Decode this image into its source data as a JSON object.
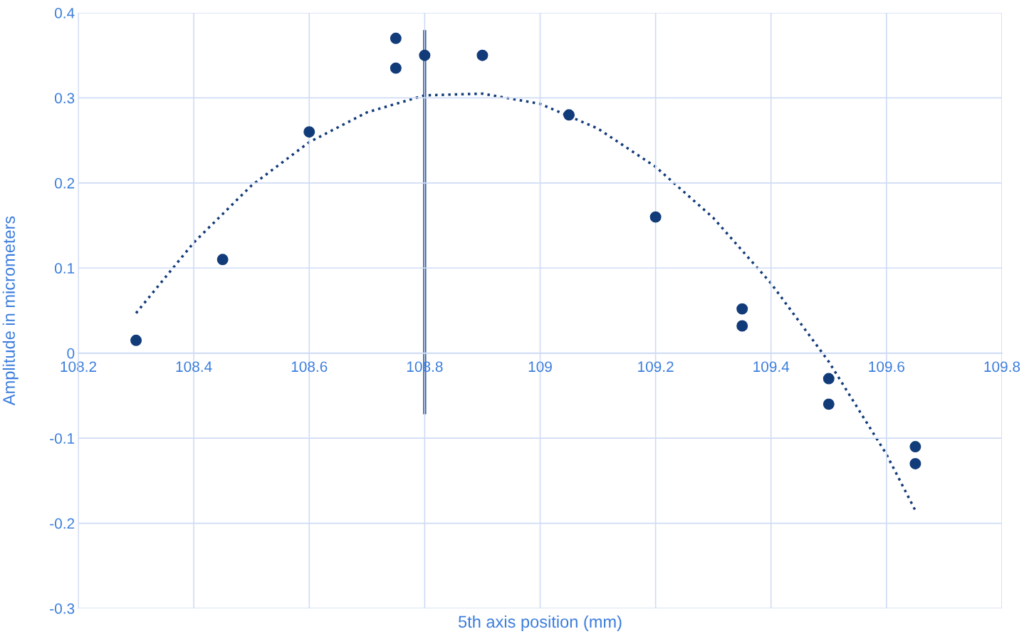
{
  "chart_data": {
    "type": "scatter",
    "xlabel": "5th axis position (mm)",
    "ylabel": "Amplitude in micrometers",
    "xlim": [
      108.2,
      109.8
    ],
    "xticks": [
      108.2,
      108.4,
      108.6,
      108.8,
      109,
      109.2,
      109.4,
      109.6,
      109.8
    ],
    "ylim": [
      -0.3,
      0.4
    ],
    "yticks": [
      -0.3,
      -0.2,
      -0.1,
      0,
      0.1,
      0.2,
      0.3,
      0.4
    ],
    "grid": true,
    "legend": false,
    "marker": "circle",
    "series": [
      {
        "color": "#123b7a",
        "x": [
          108.3,
          108.45,
          108.6,
          108.75,
          108.75,
          108.8,
          108.9,
          109.05,
          109.2,
          109.35,
          109.35,
          109.5,
          109.5,
          109.65,
          109.65
        ],
        "values": [
          0.015,
          0.11,
          0.26,
          0.37,
          0.335,
          0.35,
          0.35,
          0.28,
          0.16,
          0.052,
          0.032,
          -0.03,
          -0.06,
          -0.11,
          -0.13
        ]
      },
      {
        "type": "line",
        "line_style": "dotted",
        "marker": "none",
        "color": "#123b7a",
        "x": [
          108.3,
          108.4,
          108.5,
          108.6,
          108.7,
          108.8,
          108.9,
          109.0,
          109.1,
          109.2,
          109.3,
          109.4,
          109.5,
          109.6,
          109.65
        ],
        "values": [
          0.047,
          0.13,
          0.197,
          0.248,
          0.283,
          0.303,
          0.305,
          0.293,
          0.264,
          0.219,
          0.159,
          0.082,
          -0.01,
          -0.119,
          -0.185
        ]
      },
      {
        "type": "line",
        "line_style": "solid",
        "marker": "none",
        "color": "#123b7a",
        "x": [
          108.8,
          108.8
        ],
        "values": [
          0.378,
          -0.07
        ]
      }
    ]
  }
}
